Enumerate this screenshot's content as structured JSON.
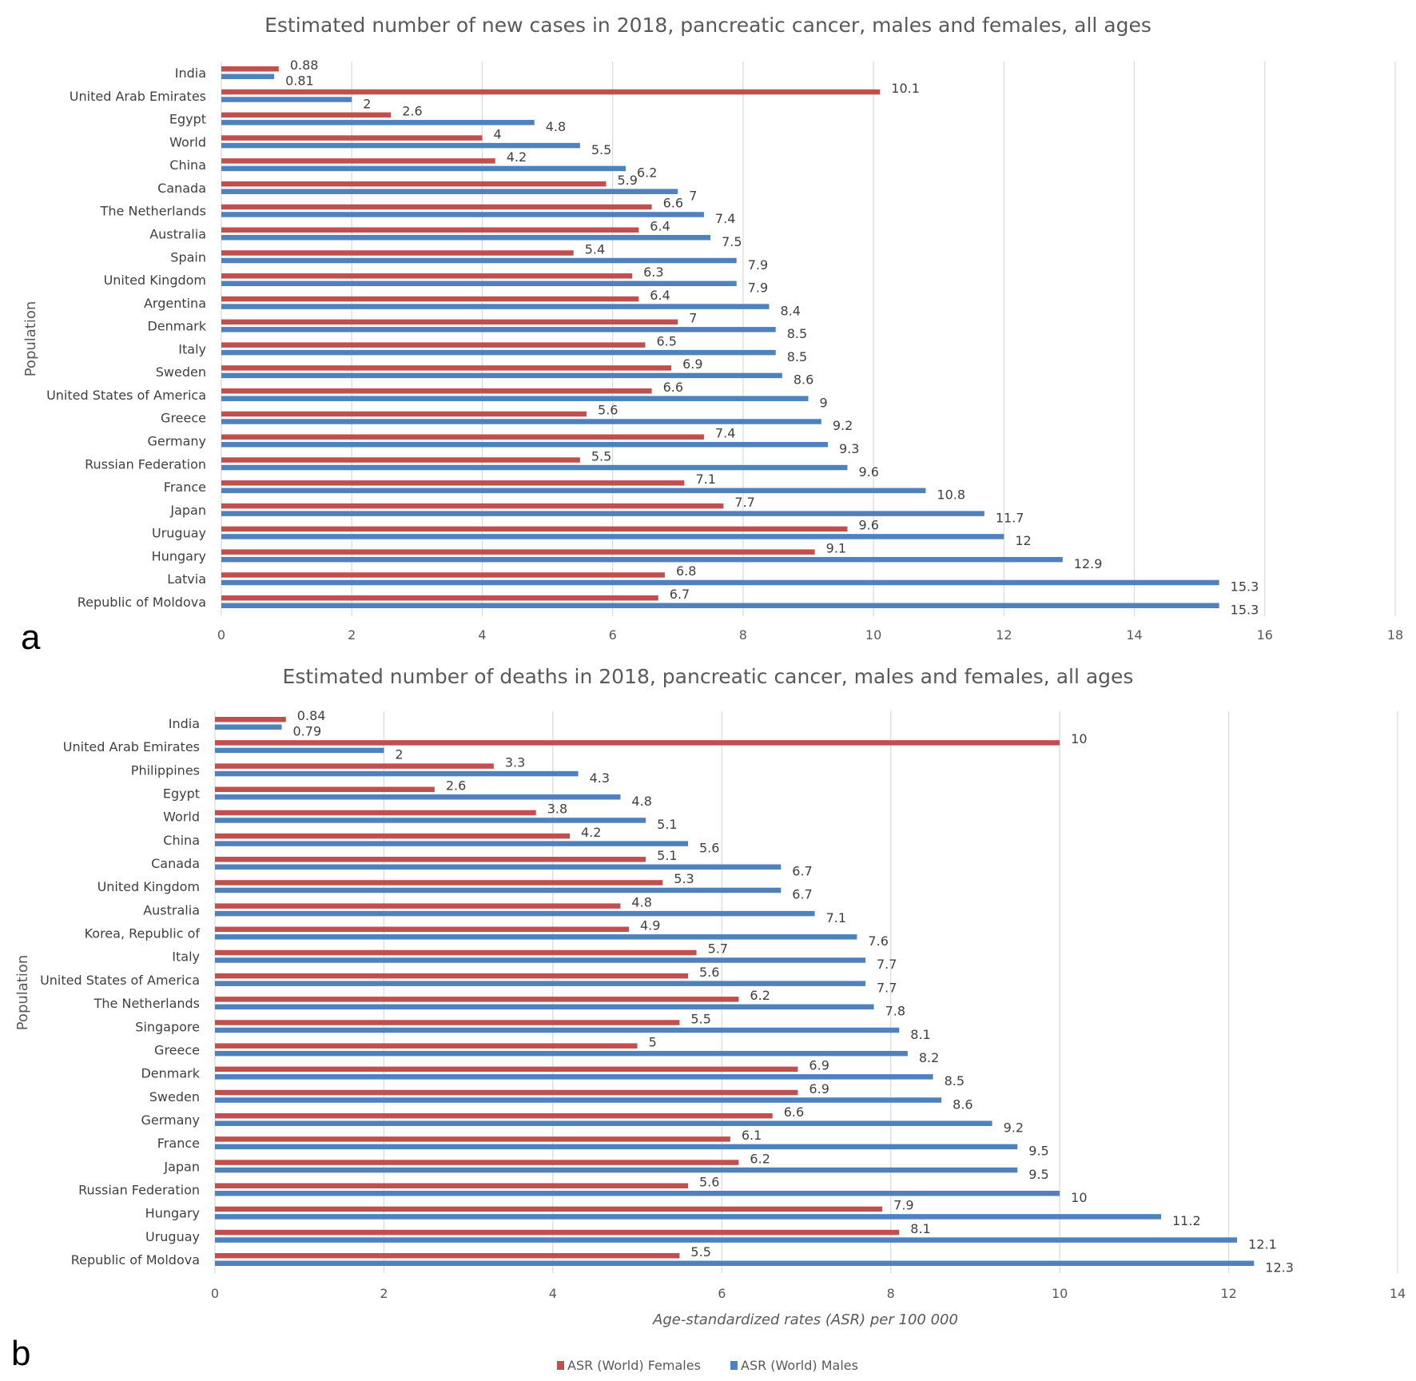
{
  "colors": {
    "females": "#c0504d",
    "males": "#4f81bd"
  },
  "legend": {
    "females": "ASR (World) Females",
    "males": "ASR (World) Males"
  },
  "chart_data": [
    {
      "type": "bar",
      "orientation": "horizontal",
      "panel_label": "a",
      "title": "Estimated number of new cases in 2018, pancreatic cancer, males and females, all ages",
      "ylabel": "Population",
      "xlabel": "",
      "xlim": [
        0,
        18
      ],
      "xticks": [
        0,
        2,
        4,
        6,
        8,
        10,
        12,
        14,
        16,
        18
      ],
      "grid": true,
      "categories": [
        "India",
        "United Arab Emirates",
        "Egypt",
        "World",
        "China",
        "Canada",
        "The Netherlands",
        "Australia",
        "Spain",
        "United Kingdom",
        "Argentina",
        "Denmark",
        "Italy",
        "Sweden",
        "United States of America",
        "Greece",
        "Germany",
        "Russian Federation",
        "France",
        "Japan",
        "Uruguay",
        "Hungary",
        "Latvia",
        "Republic of Moldova"
      ],
      "series": [
        {
          "name": "ASR (World) Females",
          "values": [
            0.88,
            10.1,
            2.6,
            4,
            4.2,
            5.9,
            6.6,
            6.4,
            5.4,
            6.3,
            6.4,
            7,
            6.5,
            6.9,
            6.6,
            5.6,
            7.4,
            5.5,
            7.1,
            7.7,
            9.6,
            9.1,
            6.8,
            6.7
          ]
        },
        {
          "name": "ASR (World) Males",
          "values": [
            0.81,
            2,
            4.8,
            5.5,
            6.2,
            7,
            7.4,
            7.5,
            7.9,
            7.9,
            8.4,
            8.5,
            8.5,
            8.6,
            9,
            9.2,
            9.3,
            9.6,
            10.8,
            11.7,
            12,
            12.9,
            15.3,
            15.3
          ]
        }
      ]
    },
    {
      "type": "bar",
      "orientation": "horizontal",
      "panel_label": "b",
      "title": "Estimated number of deaths in 2018, pancreatic cancer, males and females, all ages",
      "ylabel": "Population",
      "xlabel": "Age-standardized rates (ASR) per 100 000",
      "xlim": [
        0,
        14
      ],
      "xticks": [
        0,
        2,
        4,
        6,
        8,
        10,
        12,
        14
      ],
      "grid": true,
      "legend_position": "bottom",
      "categories": [
        "India",
        "United Arab Emirates",
        "Philippines",
        "Egypt",
        "World",
        "China",
        "Canada",
        "United Kingdom",
        "Australia",
        "Korea, Republic of",
        "Italy",
        "United States of America",
        "The Netherlands",
        "Singapore",
        "Greece",
        "Denmark",
        "Sweden",
        "Germany",
        "France",
        "Japan",
        "Russian Federation",
        "Hungary",
        "Uruguay",
        "Republic of Moldova"
      ],
      "series": [
        {
          "name": "ASR (World) Females",
          "values": [
            0.84,
            10,
            3.3,
            2.6,
            3.8,
            4.2,
            5.1,
            5.3,
            4.8,
            4.9,
            5.7,
            5.6,
            6.2,
            5.5,
            5,
            6.9,
            6.9,
            6.6,
            6.1,
            6.2,
            5.6,
            7.9,
            8.1,
            5.5
          ]
        },
        {
          "name": "ASR (World) Males",
          "values": [
            0.79,
            2,
            4.3,
            4.8,
            5.1,
            5.6,
            6.7,
            6.7,
            7.1,
            7.6,
            7.7,
            7.7,
            7.8,
            8.1,
            8.2,
            8.5,
            8.6,
            9.2,
            9.5,
            9.5,
            10,
            11.2,
            12.1,
            12.3
          ]
        }
      ]
    }
  ]
}
